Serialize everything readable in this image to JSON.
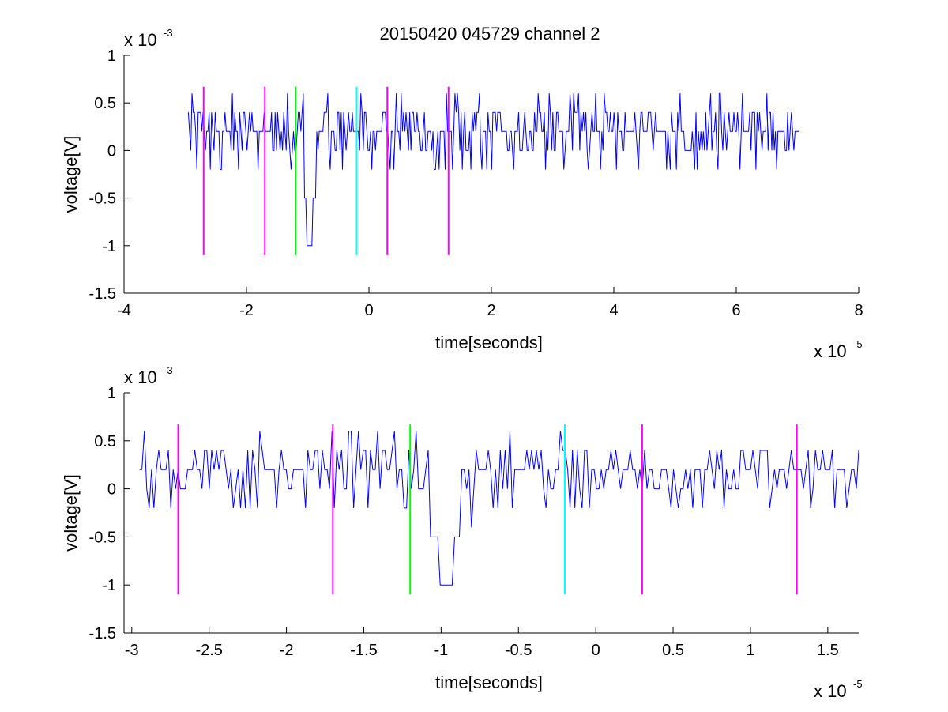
{
  "figure_title": "20150420 045729 channel 2",
  "chart_data": [
    {
      "type": "line",
      "title": "20150420 045729 channel 2",
      "xlabel": "time[seconds]",
      "ylabel": "voltage[V]",
      "x_scale_label": "x 10",
      "x_scale_exponent": "-5",
      "y_scale_label": "x 10",
      "y_scale_exponent": "-3",
      "xlim": [
        -4,
        8
      ],
      "ylim": [
        -1.5,
        1
      ],
      "x_ticks": [
        "-4",
        "-2",
        "0",
        "2",
        "4",
        "6",
        "8"
      ],
      "x_tick_values": [
        -4,
        -2,
        0,
        2,
        4,
        6,
        8
      ],
      "y_ticks": [
        "-1.5",
        "-1",
        "-0.5",
        "0",
        "0.5",
        "1"
      ],
      "y_tick_values": [
        -1.5,
        -1,
        -0.5,
        0,
        0.5,
        1
      ],
      "grid": false,
      "signal": {
        "color": "#0000ff",
        "x_range": [
          -2.95,
          7.02
        ],
        "n_points": 500,
        "baseline_levels": [
          0,
          0.2,
          0.4,
          -0.2
        ],
        "noise_spikes_max": [
          0.6,
          -0.2
        ],
        "dip": {
          "x_min": -0.97,
          "y_min": -1.0
        }
      },
      "markers": [
        {
          "x": -2.7,
          "y_range": [
            -1.1,
            0.67
          ],
          "color": "#ff00ff"
        },
        {
          "x": -1.7,
          "y_range": [
            -1.1,
            0.67
          ],
          "color": "#ff00ff"
        },
        {
          "x": -1.2,
          "y_range": [
            -1.1,
            0.67
          ],
          "color": "#00ff00"
        },
        {
          "x": -0.2,
          "y_range": [
            -1.1,
            0.67
          ],
          "color": "#00ffff"
        },
        {
          "x": 0.3,
          "y_range": [
            -1.1,
            0.67
          ],
          "color": "#ff00ff"
        },
        {
          "x": 1.3,
          "y_range": [
            -1.1,
            0.67
          ],
          "color": "#ff00ff"
        }
      ]
    },
    {
      "type": "line",
      "title": "",
      "xlabel": "time[seconds]",
      "ylabel": "voltage[V]",
      "x_scale_label": "x 10",
      "x_scale_exponent": "-5",
      "y_scale_label": "x 10",
      "y_scale_exponent": "-3",
      "xlim": [
        -3.05,
        1.7
      ],
      "ylim": [
        -1.5,
        1
      ],
      "x_ticks": [
        "-3",
        "-2.5",
        "-2",
        "-1.5",
        "-1",
        "-0.5",
        "0",
        "0.5",
        "1",
        "1.5"
      ],
      "x_tick_values": [
        -3,
        -2.5,
        -2,
        -1.5,
        -1,
        -0.5,
        0,
        0.5,
        1,
        1.5
      ],
      "y_ticks": [
        "-1.5",
        "-1",
        "-0.5",
        "0",
        "0.5",
        "1"
      ],
      "y_tick_values": [
        -1.5,
        -1,
        -0.5,
        0,
        0.5,
        1
      ],
      "grid": false,
      "signal": {
        "color": "#0000ff",
        "x_range": [
          -2.95,
          1.7
        ],
        "n_points": 300,
        "baseline_levels": [
          0,
          0.2,
          0.4,
          -0.2
        ],
        "noise_spikes_max": [
          0.6,
          -0.2
        ],
        "dip": {
          "x_min": -0.97,
          "y_min": -1.0
        }
      },
      "markers": [
        {
          "x": -2.7,
          "y_range": [
            -1.1,
            0.67
          ],
          "color": "#ff00ff"
        },
        {
          "x": -1.7,
          "y_range": [
            -1.1,
            0.67
          ],
          "color": "#ff00ff"
        },
        {
          "x": -1.2,
          "y_range": [
            -1.1,
            0.67
          ],
          "color": "#00ff00"
        },
        {
          "x": -0.2,
          "y_range": [
            -1.1,
            0.67
          ],
          "color": "#00ffff"
        },
        {
          "x": 0.3,
          "y_range": [
            -1.1,
            0.67
          ],
          "color": "#ff00ff"
        },
        {
          "x": 1.3,
          "y_range": [
            -1.1,
            0.67
          ],
          "color": "#ff00ff"
        }
      ]
    }
  ]
}
